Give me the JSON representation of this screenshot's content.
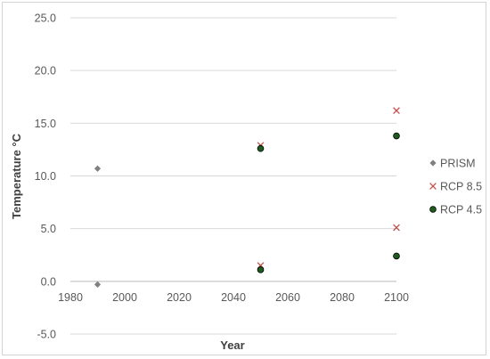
{
  "chart_data": {
    "type": "scatter",
    "title": "",
    "xlabel": "Year",
    "ylabel": "Temperature °C",
    "xlim": [
      1980,
      2100
    ],
    "ylim": [
      -5.0,
      25.0
    ],
    "x_ticks": [
      "1980",
      "2000",
      "2020",
      "2040",
      "2060",
      "2080",
      "2100"
    ],
    "y_ticks": [
      "-5.0",
      "0.0",
      "5.0",
      "10.0",
      "15.0",
      "20.0",
      "25.0"
    ],
    "grid": "horizontal",
    "legend_position": "right",
    "series": [
      {
        "name": "PRISM",
        "marker": "diamond",
        "color": "#808080",
        "points": [
          {
            "x": 1990,
            "y": 10.7
          },
          {
            "x": 1990,
            "y": -0.3
          }
        ]
      },
      {
        "name": "RCP 8.5",
        "marker": "x",
        "color": "#c0504d",
        "points": [
          {
            "x": 2050,
            "y": 12.9
          },
          {
            "x": 2050,
            "y": 1.5
          },
          {
            "x": 2100,
            "y": 16.2
          },
          {
            "x": 2100,
            "y": 5.1
          }
        ]
      },
      {
        "name": "RCP 4.5",
        "marker": "circle",
        "color": "#1e5c1e",
        "points": [
          {
            "x": 2050,
            "y": 12.6
          },
          {
            "x": 2050,
            "y": 1.1
          },
          {
            "x": 2100,
            "y": 13.8
          },
          {
            "x": 2100,
            "y": 2.4
          }
        ]
      }
    ]
  }
}
